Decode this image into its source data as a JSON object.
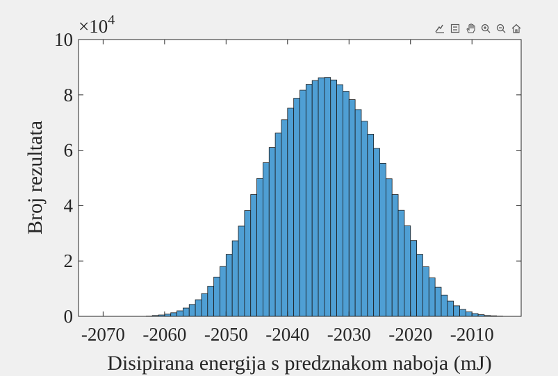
{
  "chart_data": {
    "type": "bar",
    "title": "",
    "xlabel": "Disipirana energija s predznakom naboja (mJ)",
    "ylabel": "Broj rezultata",
    "y_exponent_label": "×10",
    "y_exponent_power": "4",
    "xlim": [
      -2074,
      -2002
    ],
    "ylim": [
      0,
      10
    ],
    "xticks": [
      -2070,
      -2060,
      -2050,
      -2040,
      -2030,
      -2020,
      -2010
    ],
    "xtick_labels": [
      "-2070",
      "-2060",
      "-2050",
      "-2040",
      "-2030",
      "-2020",
      "-2010"
    ],
    "yticks": [
      0,
      2,
      4,
      6,
      8,
      10
    ],
    "ytick_labels": [
      "0",
      "2",
      "4",
      "6",
      "8",
      "10"
    ],
    "grid": false,
    "bin_start": -2074,
    "bin_width": 1,
    "bar_color": "#4f9fd4",
    "edge_color": "#1a1a1a",
    "values": [
      0,
      0,
      0,
      0,
      0,
      0,
      0,
      0,
      0,
      0,
      0,
      0.01,
      0.03,
      0.05,
      0.08,
      0.13,
      0.2,
      0.3,
      0.43,
      0.6,
      0.82,
      1.09,
      1.42,
      1.8,
      2.24,
      2.73,
      3.26,
      3.82,
      4.4,
      4.98,
      5.55,
      6.1,
      6.62,
      7.1,
      7.52,
      7.88,
      8.17,
      8.38,
      8.52,
      8.62,
      8.63,
      8.54,
      8.37,
      8.13,
      7.83,
      7.47,
      7.05,
      6.58,
      6.07,
      5.53,
      4.97,
      4.4,
      3.83,
      3.27,
      2.74,
      2.24,
      1.79,
      1.39,
      1.05,
      0.77,
      0.55,
      0.38,
      0.25,
      0.16,
      0.1,
      0.06,
      0.03,
      0.02,
      0.01,
      0,
      0,
      0
    ]
  },
  "toolbar": {
    "icons": [
      "data-tip-icon",
      "legend-icon",
      "pan-icon",
      "zoom-in-icon",
      "zoom-out-icon",
      "home-icon"
    ]
  }
}
